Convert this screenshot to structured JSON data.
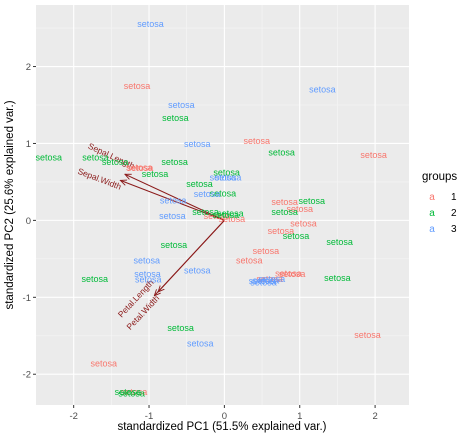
{
  "chart_data": {
    "type": "scatter",
    "subtype": "pca-biplot",
    "xlabel": "standardized PC1 (51.5% explained var.)",
    "ylabel": "standardized PC2 (25.6% explained var.)",
    "xlim": [
      -2.5,
      2.45
    ],
    "ylim": [
      -2.4,
      2.8
    ],
    "xticks": [
      -2,
      -1,
      0,
      1,
      2
    ],
    "yticks": [
      -2,
      -1,
      0,
      1,
      2
    ],
    "grid": true,
    "point_label": "setosa",
    "legend": {
      "title": "groups",
      "position": "right",
      "entries": [
        {
          "key": "a",
          "label": "1",
          "color": "#F8766D"
        },
        {
          "key": "a",
          "label": "2",
          "color": "#00BA38"
        },
        {
          "key": "a",
          "label": "3",
          "color": "#619CFF"
        }
      ]
    },
    "series": [
      {
        "name": "1",
        "color": "#F8766D",
        "x": [
          -1.16,
          -1.12,
          0.43,
          1.98,
          -1.13,
          -0.1,
          0.1,
          0.8,
          1.0,
          1.05,
          0.75,
          0.55,
          0.33,
          0.9,
          0.6,
          0.85,
          1.9,
          -1.6,
          -1.2
        ],
        "y": [
          1.75,
          0.68,
          1.03,
          0.85,
          0.69,
          0.06,
          0.02,
          0.24,
          0.15,
          -0.04,
          -0.14,
          -0.4,
          -0.52,
          -0.7,
          -0.76,
          -0.69,
          -1.49,
          -1.86,
          -2.23
        ]
      },
      {
        "name": "2",
        "color": "#00BA38",
        "x": [
          -2.33,
          -1.71,
          -0.65,
          -1.45,
          -0.66,
          0.03,
          0.76,
          -0.92,
          -0.33,
          -0.02,
          -0.25,
          0.08,
          0.02,
          0.8,
          1.16,
          -0.67,
          0.95,
          1.53,
          -1.72,
          1.5,
          -0.58,
          -1.28,
          -1.23
        ],
        "y": [
          0.82,
          0.82,
          1.33,
          0.76,
          0.76,
          0.62,
          0.88,
          0.6,
          0.47,
          0.35,
          0.11,
          0.09,
          0.07,
          0.11,
          0.25,
          -0.32,
          -0.2,
          -0.28,
          -0.76,
          -0.75,
          -1.4,
          -2.23,
          -2.25
        ]
      },
      {
        "name": "3",
        "color": "#619CFF",
        "x": [
          -0.98,
          -0.57,
          1.3,
          -0.36,
          -0.02,
          0.05,
          -0.23,
          -0.68,
          -0.69,
          -1.03,
          -1.02,
          -0.36,
          -1.01,
          0.63,
          0.5,
          0.55,
          0.52,
          -0.32
        ],
        "y": [
          2.55,
          1.5,
          1.7,
          0.99,
          0.56,
          0.56,
          0.34,
          0.26,
          0.06,
          -0.52,
          -0.7,
          -0.65,
          -0.77,
          -0.76,
          -0.79,
          -0.78,
          -0.81,
          -1.6
        ]
      }
    ],
    "arrows": [
      {
        "label": "Sepal.Width",
        "x": -1.38,
        "y": 0.52
      },
      {
        "label": "Sepal.Length",
        "x": -1.32,
        "y": 0.6
      },
      {
        "label": "Petal.Width",
        "x": -0.93,
        "y": -0.98
      },
      {
        "label": "Petal.Length",
        "x": -0.88,
        "y": -0.93
      }
    ],
    "arrow_color": "#8B1A1A"
  }
}
